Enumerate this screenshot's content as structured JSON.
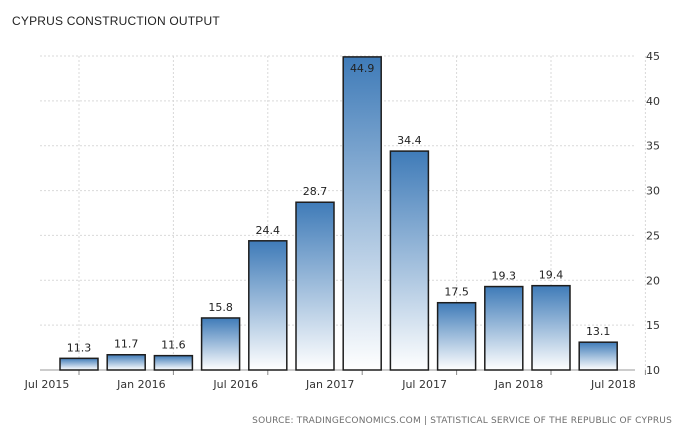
{
  "chart_data": {
    "type": "bar",
    "title": "CYPRUS CONSTRUCTION OUTPUT",
    "categories": [
      "2015 Q3",
      "2015 Q4",
      "2016 Q1",
      "2016 Q2",
      "2016 Q3",
      "2016 Q4",
      "2017 Q1",
      "2017 Q2",
      "2017 Q3",
      "2017 Q4",
      "2018 Q1",
      "2018 Q2"
    ],
    "values": [
      11.3,
      11.7,
      11.6,
      15.8,
      24.4,
      28.7,
      44.9,
      34.4,
      17.5,
      19.3,
      19.4,
      13.1
    ],
    "x_tick_labels": [
      "Jul 2015",
      "Jan 2016",
      "Jul 2016",
      "Jan 2017",
      "Jul 2017",
      "Jan 2018",
      "Jul 2018"
    ],
    "y_ticks": [
      10,
      15,
      20,
      25,
      30,
      35,
      40,
      45
    ],
    "ylim": [
      10,
      45
    ],
    "xlabel": "",
    "ylabel": "",
    "grid": true,
    "axis_position": "right",
    "data_labels": true,
    "colors": {
      "bar_top": "#3f7bb8",
      "bar_bottom": "#ffffff",
      "bar_stroke": "#1d1d1d",
      "grid": "#d9d9d9",
      "text": "#333333"
    }
  },
  "source": "SOURCE: TRADINGECONOMICS.COM  |  STATISTICAL SERVICE OF THE REPUBLIC OF CYPRUS"
}
